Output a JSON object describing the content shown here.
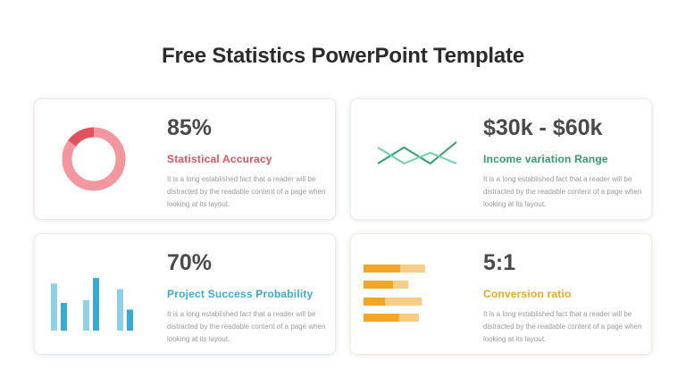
{
  "page": {
    "title": "Free Statistics PowerPoint Template"
  },
  "cards": [
    {
      "value": "85%",
      "label": "Statistical Accuracy",
      "description": "It is a long established fact that a reader will be distracted by the readable content of a page when looking at its layout.",
      "accent": "#e0535e",
      "donut": {
        "percent": 85,
        "main_color": "#f4969e",
        "highlight_color": "#e0535e"
      }
    },
    {
      "value": "$30k - $60k",
      "label": "Income variation Range",
      "description": "It is a long established fact that a reader will be distracted by the readable content of a page when looking at its layout.",
      "accent": "#2e9e6b",
      "lines": {
        "series_a": [
          2,
          5,
          2,
          6
        ],
        "series_b": [
          5,
          2,
          4,
          2
        ],
        "color_a": "#2e9e6b",
        "color_b": "#6fd1a8"
      }
    },
    {
      "value": "70%",
      "label": "Project Success Probability",
      "description": "It is a long established fact that a reader will be distracted by the readable content of a page when looking at its layout.",
      "accent": "#41a9cc",
      "bars": {
        "groups": [
          [
            0.85,
            0.5
          ],
          [
            0.55,
            0.95
          ],
          [
            0.75,
            0.38
          ]
        ],
        "light_color": "#8ed0e6",
        "dark_color": "#38aad6"
      }
    },
    {
      "value": "5:1",
      "label": "Conversion ratio",
      "description": "It is a long established fact that a reader will be distracted by the readable content of a page when looking at its layout.",
      "accent": "#e7a82a",
      "hbars": {
        "rows": [
          [
            0.6,
            0.4
          ],
          [
            0.48,
            0.25
          ],
          [
            0.35,
            0.6
          ],
          [
            0.58,
            0.32
          ]
        ],
        "dark_color": "#f2a626",
        "light_color": "#f7cd85"
      }
    }
  ]
}
